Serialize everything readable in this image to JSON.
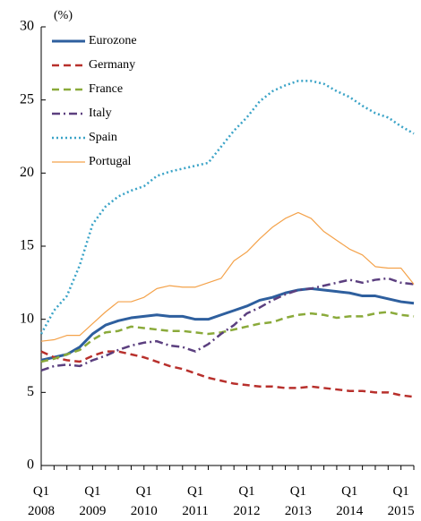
{
  "chart_data": {
    "type": "line",
    "y_axis_label": "(%)",
    "categories": [
      "Q1\n2008",
      null,
      null,
      null,
      "Q1\n2009",
      null,
      null,
      null,
      "Q1\n2010",
      null,
      null,
      null,
      "Q1\n2011",
      null,
      null,
      null,
      "Q1\n2012",
      null,
      null,
      null,
      "Q1\n2013",
      null,
      null,
      null,
      "Q1\n2014",
      null,
      null,
      null,
      "Q1\n2015",
      null
    ],
    "ylim": [
      0,
      30
    ],
    "yticks": [
      0,
      5,
      10,
      15,
      20,
      25,
      30
    ],
    "grid": false,
    "legend": "upper left",
    "series": [
      {
        "name": "Eurozone",
        "color": "#2e5f9e",
        "dash": "solid",
        "values": [
          7.2,
          7.4,
          7.6,
          8.1,
          9.0,
          9.6,
          9.9,
          10.1,
          10.2,
          10.3,
          10.2,
          10.2,
          10.0,
          10.0,
          10.3,
          10.6,
          10.9,
          11.3,
          11.5,
          11.8,
          12.0,
          12.1,
          12.0,
          11.9,
          11.8,
          11.6,
          11.6,
          11.4,
          11.2,
          11.1
        ]
      },
      {
        "name": "Germany",
        "color": "#b8302c",
        "dash": "dashed",
        "values": [
          7.8,
          7.4,
          7.2,
          7.1,
          7.5,
          7.8,
          7.8,
          7.6,
          7.4,
          7.1,
          6.8,
          6.6,
          6.3,
          6.0,
          5.8,
          5.6,
          5.5,
          5.4,
          5.4,
          5.3,
          5.3,
          5.4,
          5.3,
          5.2,
          5.1,
          5.1,
          5.0,
          5.0,
          4.8,
          4.7
        ]
      },
      {
        "name": "France",
        "color": "#8aaa3a",
        "dash": "dashed",
        "values": [
          7.1,
          7.3,
          7.6,
          7.9,
          8.6,
          9.1,
          9.2,
          9.5,
          9.4,
          9.3,
          9.2,
          9.2,
          9.1,
          9.0,
          9.1,
          9.3,
          9.5,
          9.7,
          9.8,
          10.1,
          10.3,
          10.4,
          10.3,
          10.1,
          10.2,
          10.2,
          10.4,
          10.5,
          10.3,
          10.2
        ]
      },
      {
        "name": "Italy",
        "color": "#5b3f7f",
        "dash": "dashdot",
        "values": [
          6.5,
          6.8,
          6.9,
          6.8,
          7.2,
          7.5,
          7.9,
          8.2,
          8.4,
          8.5,
          8.2,
          8.1,
          7.8,
          8.3,
          9.0,
          9.6,
          10.4,
          10.8,
          11.3,
          11.7,
          12.0,
          12.1,
          12.3,
          12.5,
          12.7,
          12.5,
          12.7,
          12.8,
          12.5,
          12.4
        ]
      },
      {
        "name": "Spain",
        "color": "#3aa3c7",
        "dash": "dotted",
        "values": [
          9.0,
          10.6,
          11.6,
          13.7,
          16.5,
          17.7,
          18.4,
          18.8,
          19.1,
          19.8,
          20.1,
          20.3,
          20.5,
          20.7,
          21.8,
          22.9,
          23.8,
          24.9,
          25.6,
          26.0,
          26.3,
          26.3,
          26.1,
          25.6,
          25.2,
          24.6,
          24.1,
          23.8,
          23.2,
          22.7
        ]
      },
      {
        "name": "Portugal",
        "color": "#f4a24a",
        "dash": "thin",
        "values": [
          8.5,
          8.6,
          8.9,
          8.9,
          9.7,
          10.5,
          11.2,
          11.2,
          11.5,
          12.1,
          12.3,
          12.2,
          12.2,
          12.5,
          12.8,
          14.0,
          14.6,
          15.5,
          16.3,
          16.9,
          17.3,
          16.9,
          16.0,
          15.4,
          14.8,
          14.4,
          13.6,
          13.5,
          13.5,
          12.4
        ]
      }
    ]
  }
}
